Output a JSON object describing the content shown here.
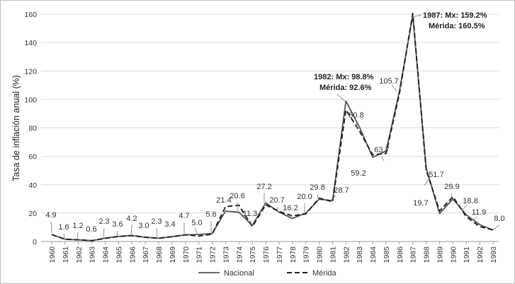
{
  "chart_data": {
    "type": "line",
    "title": "",
    "xlabel": "",
    "ylabel": "Tasa de inflación anual (%)",
    "ylim": [
      0,
      160
    ],
    "yticks": [
      0,
      20,
      40,
      60,
      80,
      100,
      120,
      140,
      160
    ],
    "grid": true,
    "categories": [
      "1960",
      "1961",
      "1962",
      "1963",
      "1964",
      "1965",
      "1966",
      "1967",
      "1968",
      "1969",
      "1970",
      "1971",
      "1972",
      "1973",
      "1974",
      "1975",
      "1976",
      "1977",
      "1978",
      "1979",
      "1980",
      "1981",
      "1982",
      "1983",
      "1984",
      "1985",
      "1986",
      "1987",
      "1988",
      "1989",
      "1990",
      "1991",
      "1992",
      "1993"
    ],
    "series": [
      {
        "name": "Nacional",
        "style": "solid",
        "color": "#555555",
        "values": [
          4.9,
          1.6,
          1.2,
          0.6,
          2.3,
          3.6,
          4.2,
          3.0,
          2.3,
          3.4,
          4.7,
          5.0,
          5.6,
          21.4,
          20.6,
          11.3,
          27.2,
          20.7,
          16.2,
          20.0,
          29.8,
          28.7,
          98.8,
          80.8,
          59.2,
          63.7,
          105.7,
          159.2,
          51.7,
          19.7,
          29.9,
          18.8,
          11.9,
          8.0
        ]
      },
      {
        "name": "Mérida",
        "style": "dashed",
        "color": "#222222",
        "values": [
          4.9,
          1.6,
          1.2,
          0.6,
          2.3,
          3.6,
          4.2,
          3.0,
          2.3,
          3.4,
          4.7,
          3.9,
          5.2,
          24.5,
          25.5,
          10.5,
          25.8,
          21.2,
          18.0,
          19.5,
          30.5,
          28.0,
          92.6,
          78.0,
          61.0,
          62.0,
          104.0,
          160.5,
          50.5,
          21.5,
          31.5,
          17.5,
          10.5,
          8.2
        ]
      }
    ],
    "data_labels": [
      {
        "text": "4.9"
      },
      {
        "text": "1.6"
      },
      {
        "text": "1.2"
      },
      {
        "text": "0.6"
      },
      {
        "text": "2.3"
      },
      {
        "text": "3.6"
      },
      {
        "text": "4.2"
      },
      {
        "text": "3.0"
      },
      {
        "text": "2.3"
      },
      {
        "text": "3.4"
      },
      {
        "text": "4.7"
      },
      {
        "text": "5.0"
      },
      {
        "text": "5.6"
      },
      {
        "text": "21.4"
      },
      {
        "text": "20.6"
      },
      {
        "text": "11.3"
      },
      {
        "text": "27.2"
      },
      {
        "text": "20.7"
      },
      {
        "text": "16.2"
      },
      {
        "text": "20.0"
      },
      {
        "text": "29.8"
      },
      {
        "text": "28.7"
      },
      {
        "text": "80.8"
      },
      {
        "text": "59.2"
      },
      {
        "text": "63.7"
      },
      {
        "text": "105.7"
      },
      {
        "text": "51.7"
      },
      {
        "text": "19.7"
      },
      {
        "text": "29.9"
      },
      {
        "text": "18.8"
      },
      {
        "text": "11.9"
      },
      {
        "text": "8.0"
      }
    ],
    "annotations": [
      {
        "lines": [
          "1987: Mx: 159.2%",
          "Mérida: 160.5%"
        ]
      },
      {
        "lines": [
          "1982: Mx: 98.8%",
          "Mérida: 92.6%"
        ]
      }
    ],
    "legend": {
      "placement": "bottom-center",
      "items": [
        "Nacional",
        "Mérida"
      ]
    }
  }
}
